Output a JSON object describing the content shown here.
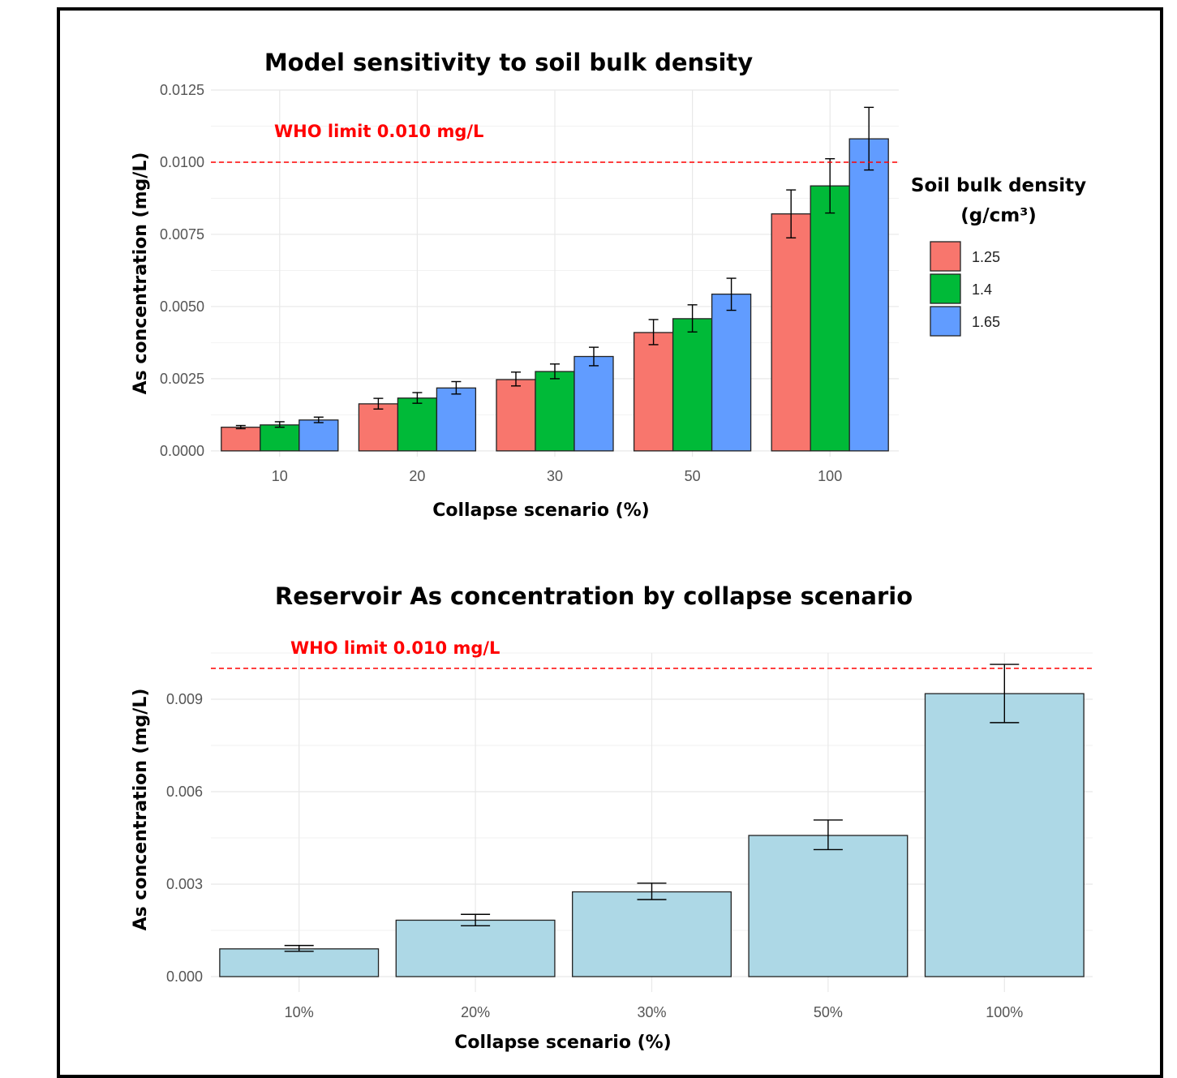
{
  "chart_data": [
    {
      "type": "bar",
      "title": "Model sensitivity to soil bulk density",
      "xlabel": "Collapse scenario (%)",
      "ylabel": "As concentration (mg/L)",
      "categories": [
        "10",
        "20",
        "30",
        "50",
        "100"
      ],
      "ylim": [
        -0.0002,
        0.0125
      ],
      "yticks": [
        "0.0000",
        "0.0025",
        "0.0050",
        "0.0075",
        "0.0100",
        "0.0125"
      ],
      "grid": true,
      "legend": {
        "title_line1": "Soil bulk density",
        "title_line2": "(g/cm³)",
        "placement": "right"
      },
      "series": [
        {
          "name": "1.25",
          "color": "#F8766D",
          "values": [
            0.00082,
            0.00163,
            0.00247,
            0.0041,
            0.00821
          ],
          "err_low": [
            0.00077,
            0.00145,
            0.00225,
            0.00368,
            0.00738
          ],
          "err_high": [
            0.00088,
            0.00182,
            0.00273,
            0.00455,
            0.00904
          ]
        },
        {
          "name": "1.4",
          "color": "#00BA38",
          "values": [
            0.0009,
            0.00183,
            0.00275,
            0.00458,
            0.00918
          ],
          "err_low": [
            0.00082,
            0.00165,
            0.0025,
            0.00412,
            0.00824
          ],
          "err_high": [
            0.00101,
            0.00202,
            0.00301,
            0.00506,
            0.01012
          ]
        },
        {
          "name": "1.65",
          "color": "#619CFF",
          "values": [
            0.00107,
            0.00218,
            0.00327,
            0.00543,
            0.01081
          ],
          "err_low": [
            0.00098,
            0.00197,
            0.00295,
            0.00487,
            0.00973
          ],
          "err_high": [
            0.00117,
            0.0024,
            0.00359,
            0.00598,
            0.0119
          ]
        }
      ],
      "reference_line": {
        "value": 0.01,
        "label": "WHO limit 0.010 mg/L",
        "color": "#FF0000"
      }
    },
    {
      "type": "bar",
      "title": "Reservoir As concentration by collapse scenario",
      "xlabel": "Collapse scenario (%)",
      "ylabel": "As concentration (mg/L)",
      "categories": [
        "10%",
        "20%",
        "30%",
        "50%",
        "100%"
      ],
      "ylim": [
        -0.0005,
        0.0105
      ],
      "yticks": [
        "0.000",
        "0.003",
        "0.006",
        "0.009"
      ],
      "grid": true,
      "bar_color": "#ADD8E6",
      "values": [
        0.0009,
        0.00183,
        0.00275,
        0.00458,
        0.00918
      ],
      "err_low": [
        0.00082,
        0.00165,
        0.0025,
        0.00412,
        0.00824
      ],
      "err_high": [
        0.00101,
        0.00202,
        0.00303,
        0.00508,
        0.01013
      ],
      "reference_line": {
        "value": 0.01,
        "label": "WHO limit 0.010 mg/L",
        "color": "#FF0000"
      }
    }
  ]
}
